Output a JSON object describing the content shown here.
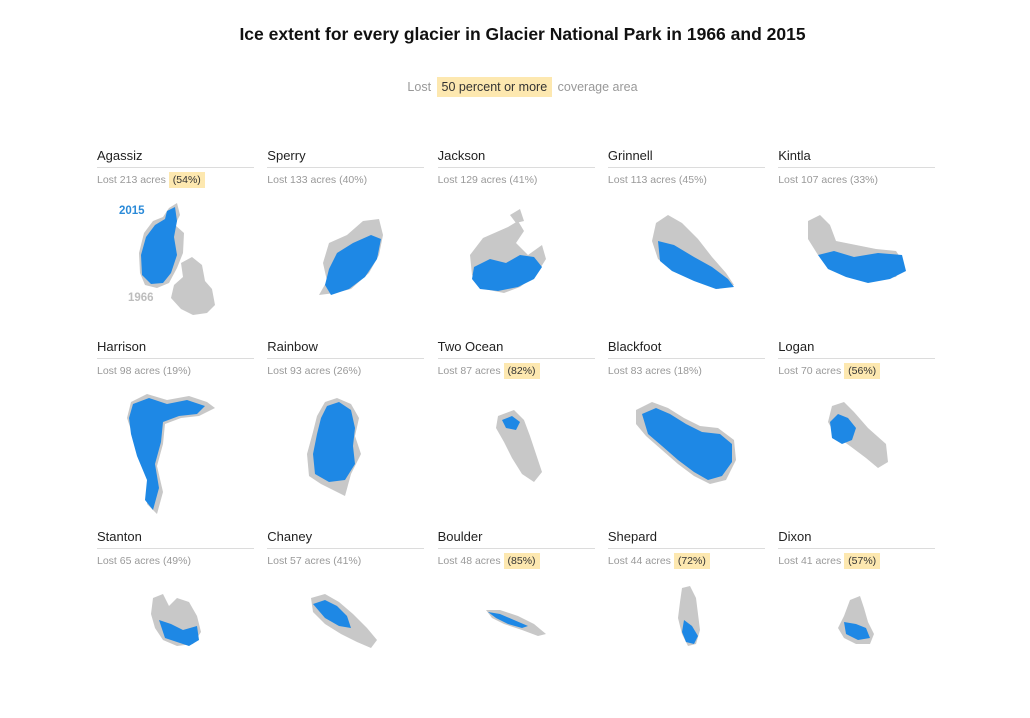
{
  "title": "Ice extent for every glacier in Glacier National Park in 1966 and 2015",
  "legend": {
    "prefix": "Lost",
    "highlight": "50 percent or more",
    "suffix": "coverage area"
  },
  "labels": {
    "year_new": "2015",
    "year_old": "1966"
  },
  "colors": {
    "ice_1966": "#c8c8c8",
    "ice_2015": "#1e88e5",
    "highlight": "#fde8b0"
  },
  "chart_data": {
    "type": "small-multiples",
    "series": [
      {
        "name": "1966"
      },
      {
        "name": "2015"
      }
    ],
    "glaciers": [
      {
        "name": "Agassiz",
        "lost_text": "Lost 213 acres",
        "pct_text": "(54%)",
        "acres_lost": 213,
        "pct_lost": 54,
        "highlight": true
      },
      {
        "name": "Sperry",
        "lost_text": "Lost 133 acres",
        "pct_text": "(40%)",
        "acres_lost": 133,
        "pct_lost": 40,
        "highlight": false
      },
      {
        "name": "Jackson",
        "lost_text": "Lost 129 acres",
        "pct_text": "(41%)",
        "acres_lost": 129,
        "pct_lost": 41,
        "highlight": false
      },
      {
        "name": "Grinnell",
        "lost_text": "Lost 113 acres",
        "pct_text": "(45%)",
        "acres_lost": 113,
        "pct_lost": 45,
        "highlight": false
      },
      {
        "name": "Kintla",
        "lost_text": "Lost 107 acres",
        "pct_text": "(33%)",
        "acres_lost": 107,
        "pct_lost": 33,
        "highlight": false
      },
      {
        "name": "Harrison",
        "lost_text": "Lost 98 acres",
        "pct_text": "(19%)",
        "acres_lost": 98,
        "pct_lost": 19,
        "highlight": false
      },
      {
        "name": "Rainbow",
        "lost_text": "Lost 93 acres",
        "pct_text": "(26%)",
        "acres_lost": 93,
        "pct_lost": 26,
        "highlight": false
      },
      {
        "name": "Two Ocean",
        "lost_text": "Lost 87 acres",
        "pct_text": "(82%)",
        "acres_lost": 87,
        "pct_lost": 82,
        "highlight": true
      },
      {
        "name": "Blackfoot",
        "lost_text": "Lost 83 acres",
        "pct_text": "(18%)",
        "acres_lost": 83,
        "pct_lost": 18,
        "highlight": false
      },
      {
        "name": "Logan",
        "lost_text": "Lost 70 acres",
        "pct_text": "(56%)",
        "acres_lost": 70,
        "pct_lost": 56,
        "highlight": true
      },
      {
        "name": "Stanton",
        "lost_text": "Lost 65 acres",
        "pct_text": "(49%)",
        "acres_lost": 65,
        "pct_lost": 49,
        "highlight": false
      },
      {
        "name": "Chaney",
        "lost_text": "Lost 57 acres",
        "pct_text": "(41%)",
        "acres_lost": 57,
        "pct_lost": 41,
        "highlight": false
      },
      {
        "name": "Boulder",
        "lost_text": "Lost 48 acres",
        "pct_text": "(85%)",
        "acres_lost": 48,
        "pct_lost": 85,
        "highlight": true
      },
      {
        "name": "Shepard",
        "lost_text": "Lost 44 acres",
        "pct_text": "(72%)",
        "acres_lost": 44,
        "pct_lost": 72,
        "highlight": true
      },
      {
        "name": "Dixon",
        "lost_text": "Lost 41 acres",
        "pct_text": "(57%)",
        "acres_lost": 41,
        "pct_lost": 57,
        "highlight": true
      }
    ]
  }
}
